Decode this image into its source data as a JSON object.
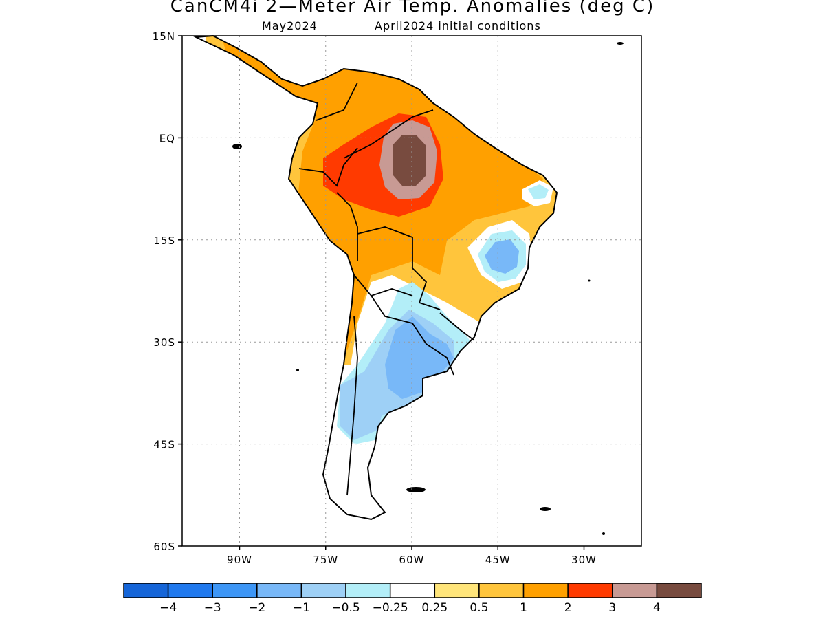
{
  "header": {
    "title": "CanCM4i 2—Meter Air Temp. Anomalies (deg C)",
    "month": "May2024",
    "init": "April2024 initial conditions"
  },
  "axes": {
    "lat_ticks": [
      "15N",
      "EQ",
      "15S",
      "30S",
      "45S",
      "60S"
    ],
    "lon_ticks": [
      "90W",
      "75W",
      "60W",
      "45W",
      "30W"
    ],
    "lat_values": [
      15,
      0,
      -15,
      -30,
      -45,
      -60
    ],
    "lon_values": [
      -90,
      -75,
      -60,
      -45,
      -30
    ],
    "lon_range": [
      -100,
      -20
    ],
    "lat_range": [
      -60,
      15
    ],
    "grid": "dotted"
  },
  "colorbar": {
    "colors": [
      "#1565d8",
      "#2079ee",
      "#3d96f6",
      "#78b8f8",
      "#9ed0f6",
      "#b3eef8",
      "#ffffff",
      "#ffe57a",
      "#ffc53c",
      "#ffa000",
      "#ff3a00",
      "#c89a94",
      "#784b3f"
    ],
    "labels": [
      "−4",
      "−3",
      "−2",
      "−1",
      "−0.5",
      "−0.25",
      "0.25",
      "0.5",
      "1",
      "2",
      "3",
      "4"
    ]
  },
  "field_colors": {
    "weak_warm": "#ffc53c",
    "warm": "#ffa000",
    "hot": "#ff3a00",
    "very_hot": "#c89a94",
    "extreme": "#784b3f",
    "near_zero_warm": "#ffe57a",
    "near_zero_cool": "#b3eef8",
    "cool": "#9ed0f6",
    "cooler": "#78b8f8",
    "land_outline": "#000000"
  }
}
